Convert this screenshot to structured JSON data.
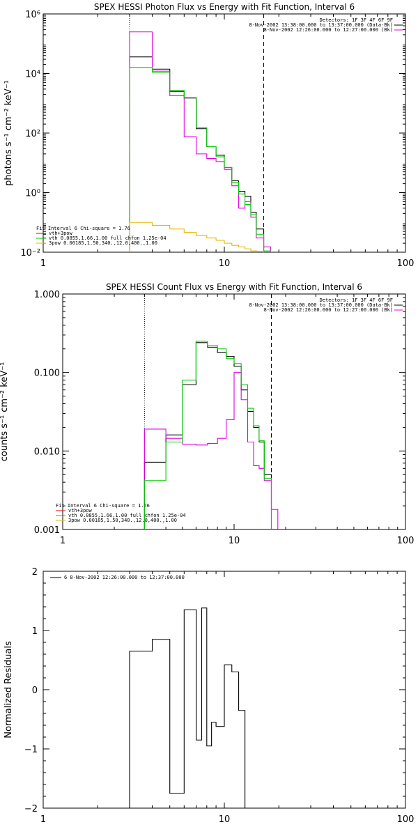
{
  "chart_data": [
    {
      "type": "line",
      "title": "SPEX HESSI Photon Flux vs Energy with Fit Function, Interval 6",
      "ylabel": "photons s⁻¹ cm⁻² keV⁻¹",
      "xscale": "log",
      "yscale": "log",
      "xlim": [
        1,
        100
      ],
      "ylim": [
        0.01,
        1000000
      ],
      "x_ticks": [
        "1",
        "10",
        "100"
      ],
      "y_ticks": [
        "10⁻²",
        "10⁰",
        "10²",
        "10⁴",
        "10⁶"
      ],
      "vlines": [
        {
          "x": 3,
          "style": "dotted"
        },
        {
          "x": 16.5,
          "style": "dashed"
        }
      ],
      "legend_top": [
        "Detectors: 1F 3F 4F 6F 9F",
        "8-Nov-2002 13:38:00.000 to 13:37:00.000 (Data-Bk)",
        "8-Nov-2002 12:26:00.000 to 12:27:00.000 (Bk)"
      ],
      "legend_bottom": [
        "Fit Interval 6   Chi-square = 1.76",
        "vth+3pow",
        "vth 0.0855,1.66,1.00  full chfon 1.25e-04",
        "3pow 0.00185,1.50,340.,12.0,400.,1.00"
      ],
      "edges": [
        3,
        4,
        5,
        6,
        7,
        8,
        9,
        10,
        11,
        12,
        13,
        14,
        15,
        16.5,
        18
      ],
      "series": [
        {
          "name": "Data-Bk",
          "color": "#000000",
          "values": [
            36000,
            14000,
            2500,
            1500,
            140,
            35,
            18,
            7,
            2.5,
            1.1,
            0.75,
            0.22,
            0.06,
            null
          ]
        },
        {
          "name": "Bk",
          "color": "#e000e0",
          "values": [
            250000,
            12000,
            1800,
            75,
            20,
            14,
            11,
            6,
            1.7,
            0.3,
            0.5,
            0.15,
            0.03,
            0.015
          ]
        },
        {
          "name": "vth+3pow",
          "color": "#00cc00",
          "values": [
            16000,
            11000,
            2700,
            1550,
            150,
            35,
            16,
            7,
            2.2,
            0.9,
            0.4,
            0.18,
            0.04,
            0.011
          ]
        },
        {
          "name": "3pow",
          "color": "#e6b800",
          "values": [
            0.1,
            0.08,
            0.06,
            0.046,
            0.036,
            0.03,
            0.025,
            0.02,
            0.017,
            0.015,
            0.013,
            0.011,
            0.0105,
            null
          ]
        }
      ]
    },
    {
      "type": "line",
      "title": "SPEX HESSI Count Flux vs Energy with Fit Function, Interval 6",
      "ylabel": "counts s⁻¹ cm⁻² keV⁻¹",
      "xscale": "log",
      "yscale": "log",
      "xlim": [
        1,
        100
      ],
      "ylim": [
        0.001,
        1.0
      ],
      "x_ticks": [
        "1",
        "10",
        "100"
      ],
      "y_ticks": [
        "0.001",
        "0.010",
        "0.100",
        "1.000"
      ],
      "vlines": [
        {
          "x": 3,
          "style": "dotted"
        },
        {
          "x": 16.5,
          "style": "dashed"
        }
      ],
      "legend_top": [
        "Detectors: 1F 3F 4F 6F 9F",
        "8-Nov-2002 13:38:00.000 to 13:37:00.000 (Data-Bk)",
        "8-Nov-2002 12:26:00.000 to 12:27:00.000 (Bk)"
      ],
      "legend_bottom": [
        "Fit Interval 6   Chi-square = 1.76",
        "vth+3pow",
        "vth 0.0855,1.66,1.00  full chfon 1.25e-04",
        "3pow 0.00185,1.50,340.,12.0,400.,1.00"
      ],
      "edges": [
        3,
        4,
        5,
        6,
        7,
        8,
        9,
        10,
        11,
        12,
        13,
        14,
        15,
        16.5,
        18
      ],
      "series": [
        {
          "name": "Data-Bk",
          "color": "#000000",
          "values": [
            0.0072,
            0.016,
            0.07,
            0.24,
            0.21,
            0.18,
            0.16,
            0.12,
            0.06,
            0.032,
            0.02,
            0.013,
            0.005,
            null
          ]
        },
        {
          "name": "Bk",
          "color": "#e000e0",
          "values": [
            0.019,
            0.0145,
            0.0122,
            0.0119,
            0.0125,
            0.0145,
            0.025,
            0.1,
            0.045,
            0.013,
            0.0065,
            0.006,
            0.0042,
            0.0018
          ]
        },
        {
          "name": "vth+3pow",
          "color": "#00cc00",
          "values": [
            0.0042,
            0.013,
            0.08,
            0.25,
            0.22,
            0.2,
            0.15,
            0.13,
            0.07,
            0.035,
            0.021,
            0.0135,
            0.0045,
            null
          ]
        }
      ]
    },
    {
      "type": "line",
      "title": "",
      "ylabel": "Normalized Residuals",
      "xscale": "log",
      "yscale": "linear",
      "xlim": [
        1,
        100
      ],
      "ylim": [
        -2,
        2
      ],
      "x_ticks": [
        "1",
        "10",
        "100"
      ],
      "y_ticks": [
        "−2",
        "−1",
        "0",
        "1",
        "2"
      ],
      "legend_top": [
        "6  8-Nov-2002 12:26:00.000 to 12:37:00.000"
      ],
      "edges": [
        3,
        4,
        5,
        6,
        7,
        7.5,
        8,
        8.5,
        9,
        10,
        11,
        12,
        13,
        14,
        15,
        16.5
      ],
      "series": [
        {
          "name": "6",
          "color": "#000000",
          "values": [
            0.65,
            0.85,
            -1.75,
            1.35,
            -0.85,
            1.38,
            -0.95,
            -0.55,
            -0.62,
            0.42,
            0.3,
            -0.35,
            null,
            null,
            null
          ]
        }
      ]
    }
  ]
}
